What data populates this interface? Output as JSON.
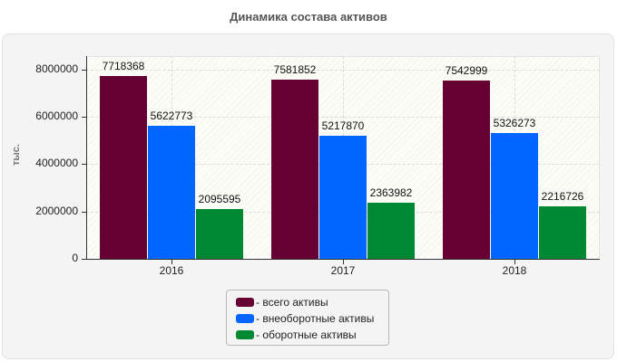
{
  "title": "Динамика состава активов",
  "colors": {
    "total": "#660033",
    "noncurrent": "#0066ff",
    "current": "#008833"
  },
  "chart_data": {
    "type": "bar",
    "title": "Динамика состава активов",
    "xlabel": "",
    "ylabel": "тыс.",
    "categories": [
      "2016",
      "2017",
      "2018"
    ],
    "series": [
      {
        "name": "- всего активы",
        "color": "#660033",
        "values": [
          7718368,
          7581852,
          7542999
        ]
      },
      {
        "name": "- внеоборотные активы",
        "color": "#0066ff",
        "values": [
          5622773,
          5217870,
          5326273
        ]
      },
      {
        "name": "- оборотные активы",
        "color": "#008833",
        "values": [
          2095595,
          2363982,
          2216726
        ]
      }
    ],
    "yticks": [
      "0",
      "2000000",
      "4000000",
      "6000000",
      "8000000"
    ],
    "ylim": [
      0,
      8570000
    ],
    "grid": true,
    "legend_position": "bottom",
    "data_labels": true
  }
}
